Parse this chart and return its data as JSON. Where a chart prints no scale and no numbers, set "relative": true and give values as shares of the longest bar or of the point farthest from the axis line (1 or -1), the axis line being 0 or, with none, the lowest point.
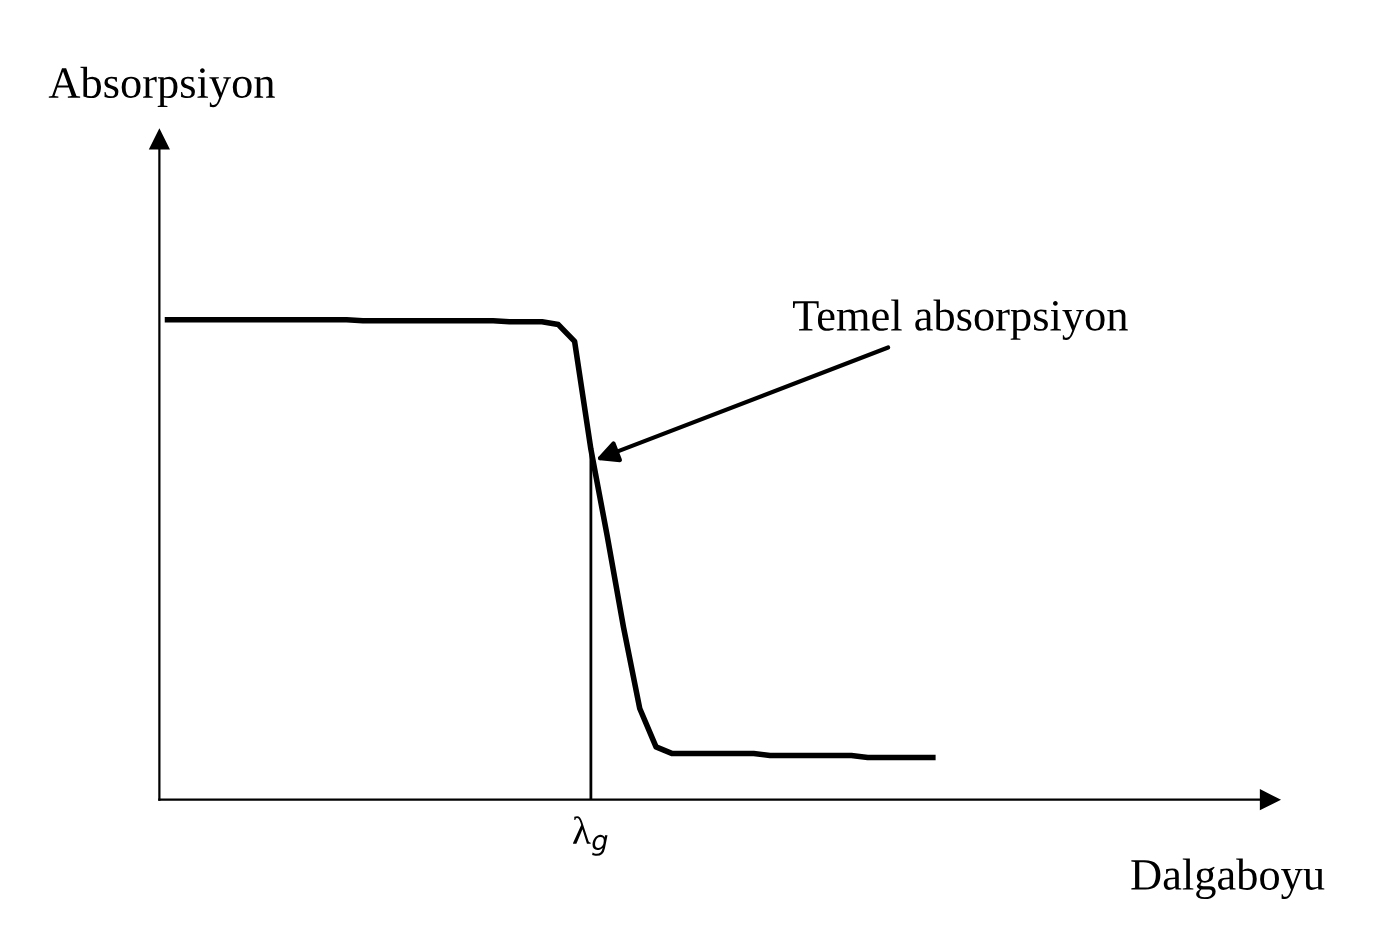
{
  "chart_data": {
    "type": "line",
    "relative": true,
    "xlabel": "Dalgaboyu",
    "ylabel": "Absorpsiyon",
    "categories": [
      null,
      null,
      null,
      null,
      null,
      null,
      null,
      null,
      null,
      null,
      null,
      null,
      null,
      null,
      null,
      null,
      null,
      null,
      null,
      null,
      null,
      null,
      null,
      null,
      null,
      null,
      null,
      null,
      null,
      null,
      null,
      null,
      null,
      null,
      null,
      null,
      null,
      null,
      null,
      null,
      null,
      null,
      null,
      null,
      null,
      null,
      null,
      null
    ],
    "series": [
      {
        "color": "#000000",
        "values": [
          1.0,
          1.0,
          1.0,
          1.0,
          1.0,
          1.0,
          1.0,
          1.0,
          1.0,
          1.0,
          1.0,
          1.0,
          0.998,
          0.998,
          0.998,
          0.998,
          0.998,
          0.998,
          0.998,
          0.998,
          0.998,
          0.996,
          0.996,
          0.996,
          0.99,
          0.955,
          0.73,
          0.55,
          0.36,
          0.19,
          0.11,
          0.096,
          0.096,
          0.096,
          0.096,
          0.096,
          0.096,
          0.092,
          0.092,
          0.092,
          0.092,
          0.092,
          0.092,
          0.088,
          0.088,
          0.088,
          0.088,
          0.088
        ]
      }
    ],
    "annotations": [
      "Temel absorpsiyon",
      "λ$_{g}$"
    ],
    "marker": "none",
    "line_style": "solid"
  }
}
